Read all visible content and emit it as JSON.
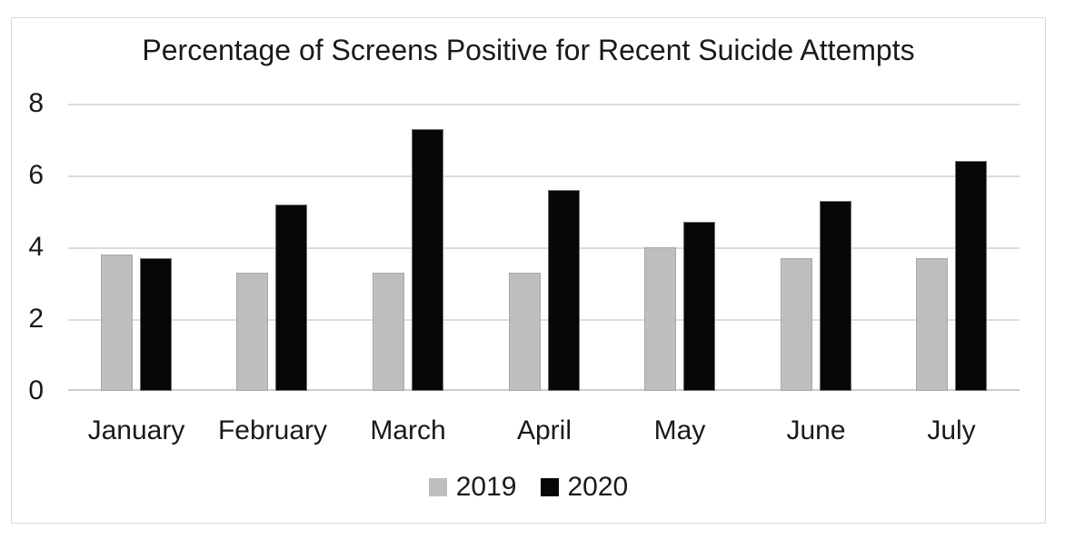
{
  "chart_data": {
    "type": "bar",
    "title": "Percentage of Screens Positive for Recent Suicide Attempts",
    "categories": [
      "January",
      "February",
      "March",
      "April",
      "May",
      "June",
      "July"
    ],
    "series": [
      {
        "name": "2019",
        "color": "#bebebe",
        "values": [
          3.8,
          3.3,
          3.3,
          3.3,
          4.0,
          3.7,
          3.7
        ]
      },
      {
        "name": "2020",
        "color": "#070707",
        "values": [
          3.7,
          5.2,
          7.3,
          5.6,
          4.7,
          5.3,
          6.4
        ]
      }
    ],
    "xlabel": "",
    "ylabel": "",
    "ylim": [
      0,
      8
    ],
    "yticks": [
      0,
      2,
      4,
      6,
      8
    ],
    "grid": true,
    "legend_position": "bottom",
    "legend_entries": [
      "2019",
      "2020"
    ]
  },
  "colors": {
    "gridline": "#dcdcdc",
    "baseline": "#cdcdcd",
    "frame_border": "#d9d9d9",
    "text": "#1a1a1a",
    "background": "#ffffff"
  }
}
